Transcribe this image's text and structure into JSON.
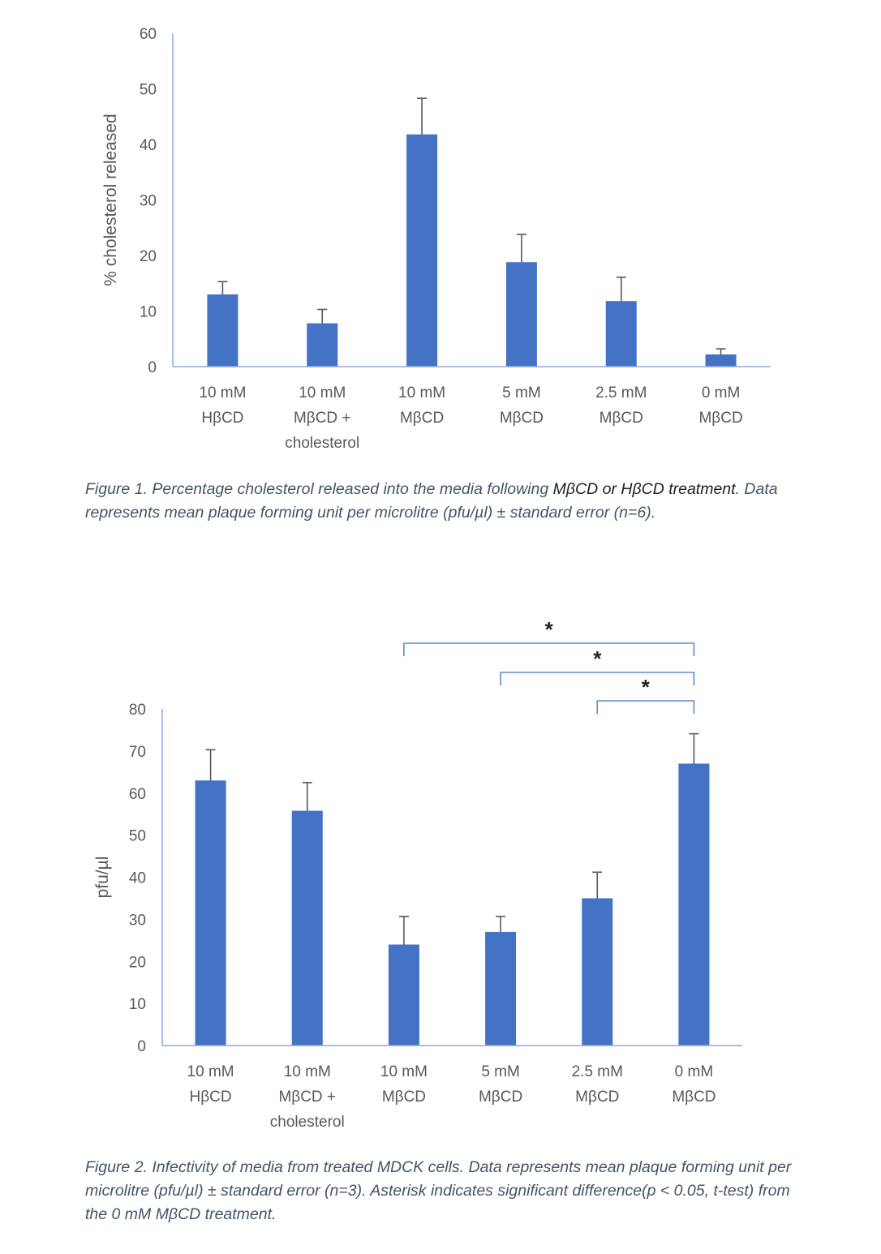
{
  "chart_data": [
    {
      "type": "bar",
      "ylabel": "% cholesterol released",
      "ylim": [
        0,
        60
      ],
      "yticks": [
        0,
        10,
        20,
        30,
        40,
        50,
        60
      ],
      "categories": [
        [
          "10 mM",
          "HβCD"
        ],
        [
          "10 mM",
          "MβCD +",
          "cholesterol"
        ],
        [
          "10 mM",
          "MβCD"
        ],
        [
          "5 mM",
          "MβCD"
        ],
        [
          "2.5 mM",
          "MβCD"
        ],
        [
          "0 mM",
          "MβCD"
        ]
      ],
      "values": [
        13,
        7.8,
        41.8,
        18.8,
        11.8,
        2.2
      ],
      "errors": [
        2.3,
        2.5,
        6.5,
        5.0,
        4.3,
        1.0
      ],
      "bar_color": "#4472c4",
      "grid": false,
      "legend": "none"
    },
    {
      "type": "bar",
      "ylabel": "pfu/µl",
      "ylim": [
        0,
        80
      ],
      "yticks": [
        0,
        10,
        20,
        30,
        40,
        50,
        60,
        70,
        80
      ],
      "categories": [
        [
          "10 mM",
          "HβCD"
        ],
        [
          "10 mM",
          "MβCD +",
          "cholesterol"
        ],
        [
          "10 mM",
          "MβCD"
        ],
        [
          "5 mM",
          "MβCD"
        ],
        [
          "2.5 mM",
          "MβCD"
        ],
        [
          "0 mM",
          "MβCD"
        ]
      ],
      "values": [
        63,
        55.8,
        24,
        27,
        35,
        67
      ],
      "errors": [
        7.3,
        6.7,
        6.7,
        3.7,
        6.2,
        7.1
      ],
      "bar_color": "#4472c4",
      "grid": false,
      "legend": "none",
      "significance": [
        {
          "from": 2,
          "to": 5,
          "label": "*"
        },
        {
          "from": 3,
          "to": 5,
          "label": "*"
        },
        {
          "from": 4,
          "to": 5,
          "label": "*"
        }
      ]
    }
  ],
  "captions": {
    "fig1_a": "Figure 1. Percentage cholesterol released into the media following ",
    "fig1_b": "MβCD or HβCD treatment",
    "fig1_c": ". Data represents mean plaque forming unit per microlitre (pfu/µl) ± standard error (n=6).",
    "fig2": "Figure 2. Infectivity of media from treated MDCK cells.  Data represents mean plaque forming unit per microlitre (pfu/µl) ± standard error (n=3). Asterisk indicates significant difference(p < 0.05, t-test) from the 0 mM MβCD treatment."
  }
}
